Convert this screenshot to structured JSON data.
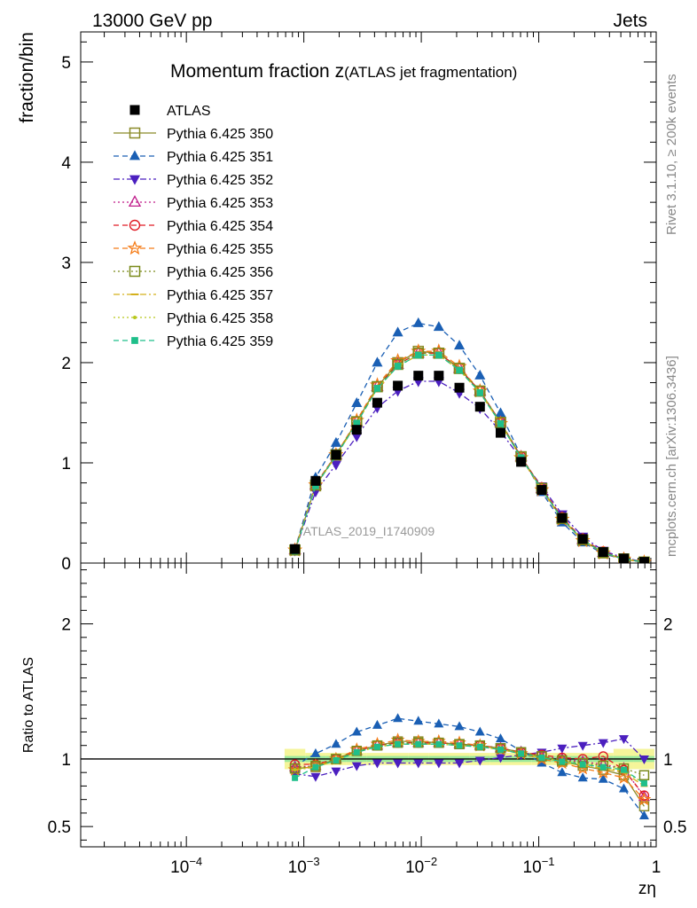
{
  "header": {
    "left": "13000 GeV pp",
    "right": "Jets"
  },
  "side_labels": {
    "rivet": "Rivet 3.1.10, ≥ 200k events",
    "mcplots": "mcplots.cern.ch [arXiv:1306.3436]"
  },
  "watermark": "ATLAS_2019_I1740909",
  "chart_data": {
    "type": "scatter",
    "title": "Momentum fraction z",
    "subtitle": "(ATLAS jet fragmentation)",
    "xlabel": "zη",
    "ylabel": "fraction/bin",
    "ratio_ylabel": "Ratio to ATLAS",
    "x_scale": "log",
    "xlim": [
      1.26e-05,
      1.0
    ],
    "ylim": [
      0,
      5.3
    ],
    "ratio_ylim": [
      0.35,
      2.45
    ],
    "legend_placement": "top-left",
    "x_ticks": [
      {
        "value": 0.0001,
        "label": "10",
        "exp": "−4"
      },
      {
        "value": 0.001,
        "label": "10",
        "exp": "−3"
      },
      {
        "value": 0.01,
        "label": "10",
        "exp": "−2"
      },
      {
        "value": 0.1,
        "label": "10",
        "exp": "−1"
      },
      {
        "value": 1,
        "label": "1",
        "exp": ""
      }
    ],
    "y_ticks": [
      {
        "value": 0,
        "label": "0"
      },
      {
        "value": 1,
        "label": "1"
      },
      {
        "value": 2,
        "label": "2"
      },
      {
        "value": 3,
        "label": "3"
      },
      {
        "value": 4,
        "label": "4"
      },
      {
        "value": 5,
        "label": "5"
      }
    ],
    "ratio_ticks": [
      {
        "value": 0.5,
        "label": "0.5"
      },
      {
        "value": 1,
        "label": "1"
      },
      {
        "value": 2,
        "label": "2"
      }
    ],
    "x": [
      0.00084,
      0.00126,
      0.00188,
      0.00282,
      0.00422,
      0.00631,
      0.00944,
      0.0141,
      0.0211,
      0.0316,
      0.0473,
      0.0707,
      0.106,
      0.158,
      0.237,
      0.354,
      0.53,
      0.79
    ],
    "reference": {
      "name": "ATLAS",
      "color": "#000000",
      "marker": "square-filled",
      "values": [
        0.14,
        0.82,
        1.08,
        1.33,
        1.6,
        1.77,
        1.87,
        1.87,
        1.75,
        1.56,
        1.3,
        1.01,
        0.73,
        0.45,
        0.24,
        0.11,
        0.045,
        0.012
      ]
    },
    "series": [
      {
        "name": "Pythia 6.425 350",
        "color": "#8a8a28",
        "marker": "square-open",
        "dash": "solid",
        "ratio": [
          0.93,
          0.94,
          1.0,
          1.06,
          1.1,
          1.13,
          1.13,
          1.12,
          1.11,
          1.1,
          1.08,
          1.05,
          1.02,
          0.98,
          0.95,
          0.92,
          0.88,
          0.65
        ]
      },
      {
        "name": "Pythia 6.425 351",
        "color": "#1a5fb4",
        "marker": "triangle-up-filled",
        "dash": "dashed",
        "ratio": [
          0.95,
          1.04,
          1.11,
          1.2,
          1.25,
          1.3,
          1.28,
          1.26,
          1.24,
          1.2,
          1.15,
          1.06,
          0.97,
          0.9,
          0.86,
          0.85,
          0.78,
          0.58
        ]
      },
      {
        "name": "Pythia 6.425 352",
        "color": "#4b1fbf",
        "marker": "triangle-down-filled",
        "dash": "dashdot",
        "ratio": [
          0.89,
          0.87,
          0.91,
          0.95,
          0.97,
          0.97,
          0.97,
          0.97,
          0.97,
          0.99,
          1.01,
          1.03,
          1.05,
          1.08,
          1.1,
          1.12,
          1.15,
          1.0
        ]
      },
      {
        "name": "Pythia 6.425 353",
        "color": "#c01c8b",
        "marker": "triangle-up-open",
        "dash": "dotted",
        "ratio": [
          0.94,
          0.95,
          1.0,
          1.06,
          1.1,
          1.12,
          1.12,
          1.12,
          1.11,
          1.1,
          1.08,
          1.05,
          1.02,
          1.0,
          0.98,
          0.96,
          0.93,
          0.72
        ]
      },
      {
        "name": "Pythia 6.425 354",
        "color": "#e01b24",
        "marker": "circle-open",
        "dash": "dashed",
        "ratio": [
          0.96,
          0.96,
          1.0,
          1.06,
          1.1,
          1.12,
          1.12,
          1.12,
          1.11,
          1.1,
          1.08,
          1.05,
          1.03,
          1.01,
          1.0,
          1.02,
          0.92,
          0.73
        ]
      },
      {
        "name": "Pythia 6.425 355",
        "color": "#f57c18",
        "marker": "star-open",
        "dash": "dashed",
        "ratio": [
          0.92,
          0.95,
          1.0,
          1.07,
          1.11,
          1.14,
          1.13,
          1.13,
          1.12,
          1.1,
          1.07,
          1.04,
          1.0,
          0.97,
          0.93,
          0.9,
          0.86,
          0.7
        ]
      },
      {
        "name": "Pythia 6.425 356",
        "color": "#7a8a1a",
        "marker": "square-open",
        "dash": "dotted",
        "ratio": [
          0.93,
          0.95,
          1.0,
          1.06,
          1.1,
          1.12,
          1.12,
          1.12,
          1.11,
          1.1,
          1.08,
          1.05,
          1.02,
          0.99,
          0.97,
          0.95,
          0.93,
          0.88
        ]
      },
      {
        "name": "Pythia 6.425 357",
        "color": "#d4b01c",
        "marker": "dash-marker",
        "dash": "dashdot",
        "ratio": [
          0.92,
          0.94,
          0.99,
          1.05,
          1.09,
          1.11,
          1.11,
          1.11,
          1.1,
          1.09,
          1.07,
          1.04,
          1.01,
          0.98,
          0.95,
          0.93,
          0.9,
          0.8
        ]
      },
      {
        "name": "Pythia 6.425 358",
        "color": "#b8c81c",
        "marker": "dot",
        "dash": "dotted",
        "ratio": [
          0.92,
          0.94,
          0.99,
          1.05,
          1.09,
          1.11,
          1.11,
          1.11,
          1.1,
          1.09,
          1.07,
          1.04,
          1.01,
          0.98,
          0.96,
          0.94,
          0.91,
          0.82
        ]
      },
      {
        "name": "Pythia 6.425 359",
        "color": "#1fbf8a",
        "marker": "square-filled-small",
        "dash": "dashed",
        "ratio": [
          0.86,
          0.94,
          0.99,
          1.05,
          1.09,
          1.11,
          1.11,
          1.11,
          1.1,
          1.09,
          1.07,
          1.04,
          1.01,
          0.98,
          0.96,
          0.94,
          0.92,
          0.82
        ]
      }
    ]
  }
}
